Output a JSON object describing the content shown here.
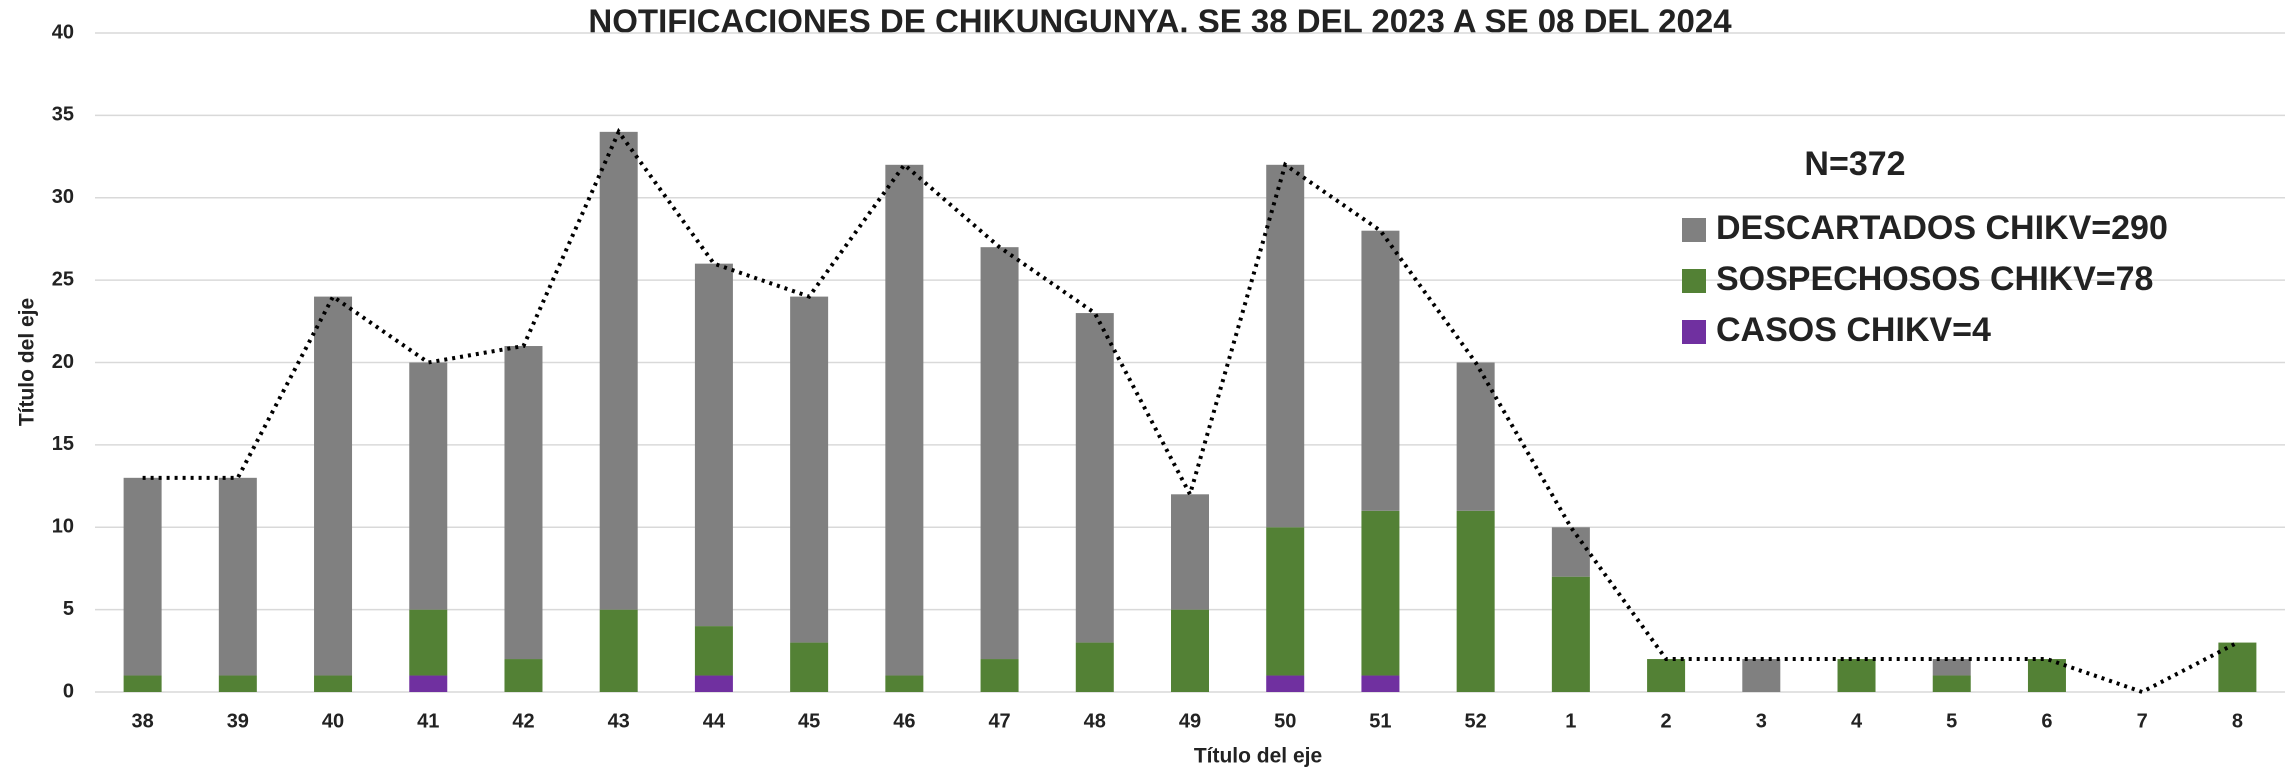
{
  "chart_data": {
    "type": "bar",
    "stacked": true,
    "title": "NOTIFICACIONES DE CHIKUNGUNYA. SE 38 DEL 2023 A SE 08 DEL 2024",
    "annotation": "N=372",
    "x_label": "Título del eje",
    "y_label": "Título del eje",
    "categories": [
      "38",
      "39",
      "40",
      "41",
      "42",
      "43",
      "44",
      "45",
      "46",
      "47",
      "48",
      "49",
      "50",
      "51",
      "52",
      "1",
      "2",
      "3",
      "4",
      "5",
      "6",
      "7",
      "8"
    ],
    "series": [
      {
        "name": "CASOS CHIKV=4",
        "color": "#7030a0",
        "values": [
          0,
          0,
          0,
          1,
          0,
          0,
          1,
          0,
          0,
          0,
          0,
          0,
          1,
          1,
          0,
          0,
          0,
          0,
          0,
          0,
          0,
          0,
          0
        ]
      },
      {
        "name": "SOSPECHOSOS CHIKV=78",
        "color": "#538135",
        "values": [
          1,
          1,
          1,
          4,
          2,
          5,
          3,
          3,
          1,
          2,
          3,
          5,
          9,
          10,
          11,
          7,
          2,
          0,
          2,
          1,
          2,
          0,
          3
        ]
      },
      {
        "name": "DESCARTADOS CHIKV=290",
        "color": "#808080",
        "values": [
          12,
          12,
          23,
          15,
          19,
          29,
          22,
          21,
          31,
          25,
          20,
          7,
          22,
          17,
          9,
          3,
          0,
          2,
          0,
          1,
          0,
          0,
          0
        ]
      },
      {
        "type": "line",
        "color": "#000000",
        "values": [
          13,
          13,
          24,
          20,
          21,
          34,
          26,
          24,
          32,
          27,
          23,
          12,
          32,
          28,
          20,
          10,
          2,
          2,
          2,
          2,
          2,
          0,
          3
        ]
      }
    ],
    "ylim": [
      0,
      40
    ],
    "yticks": [
      0,
      5,
      10,
      15,
      20,
      25,
      30,
      35,
      40
    ],
    "grid": true
  }
}
